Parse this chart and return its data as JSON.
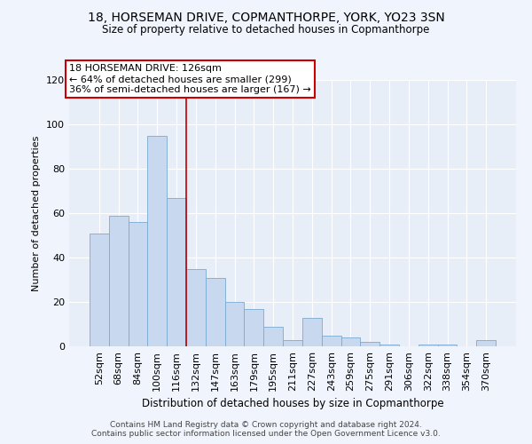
{
  "title": "18, HORSEMAN DRIVE, COPMANTHORPE, YORK, YO23 3SN",
  "subtitle": "Size of property relative to detached houses in Copmanthorpe",
  "xlabel": "Distribution of detached houses by size in Copmanthorpe",
  "ylabel": "Number of detached properties",
  "bar_color": "#c8d8ee",
  "bar_edge_color": "#7aaad0",
  "bg_color": "#e8eef8",
  "fig_color": "#f0f4fc",
  "grid_color": "#ffffff",
  "categories": [
    "52sqm",
    "68sqm",
    "84sqm",
    "100sqm",
    "116sqm",
    "132sqm",
    "147sqm",
    "163sqm",
    "179sqm",
    "195sqm",
    "211sqm",
    "227sqm",
    "243sqm",
    "259sqm",
    "275sqm",
    "291sqm",
    "306sqm",
    "322sqm",
    "338sqm",
    "354sqm",
    "370sqm"
  ],
  "values": [
    51,
    59,
    56,
    95,
    67,
    35,
    31,
    20,
    17,
    9,
    3,
    13,
    5,
    4,
    2,
    1,
    0,
    1,
    1,
    0,
    3
  ],
  "ylim": [
    0,
    120
  ],
  "yticks": [
    0,
    20,
    40,
    60,
    80,
    100,
    120
  ],
  "property_label": "18 HORSEMAN DRIVE: 126sqm",
  "annotation_line1": "← 64% of detached houses are smaller (299)",
  "annotation_line2": "36% of semi-detached houses are larger (167) →",
  "vline_position": 4.5,
  "annotation_box_color": "#ffffff",
  "annotation_box_edge": "#cc0000",
  "vline_color": "#bb0000",
  "footer1": "Contains HM Land Registry data © Crown copyright and database right 2024.",
  "footer2": "Contains public sector information licensed under the Open Government Licence v3.0."
}
